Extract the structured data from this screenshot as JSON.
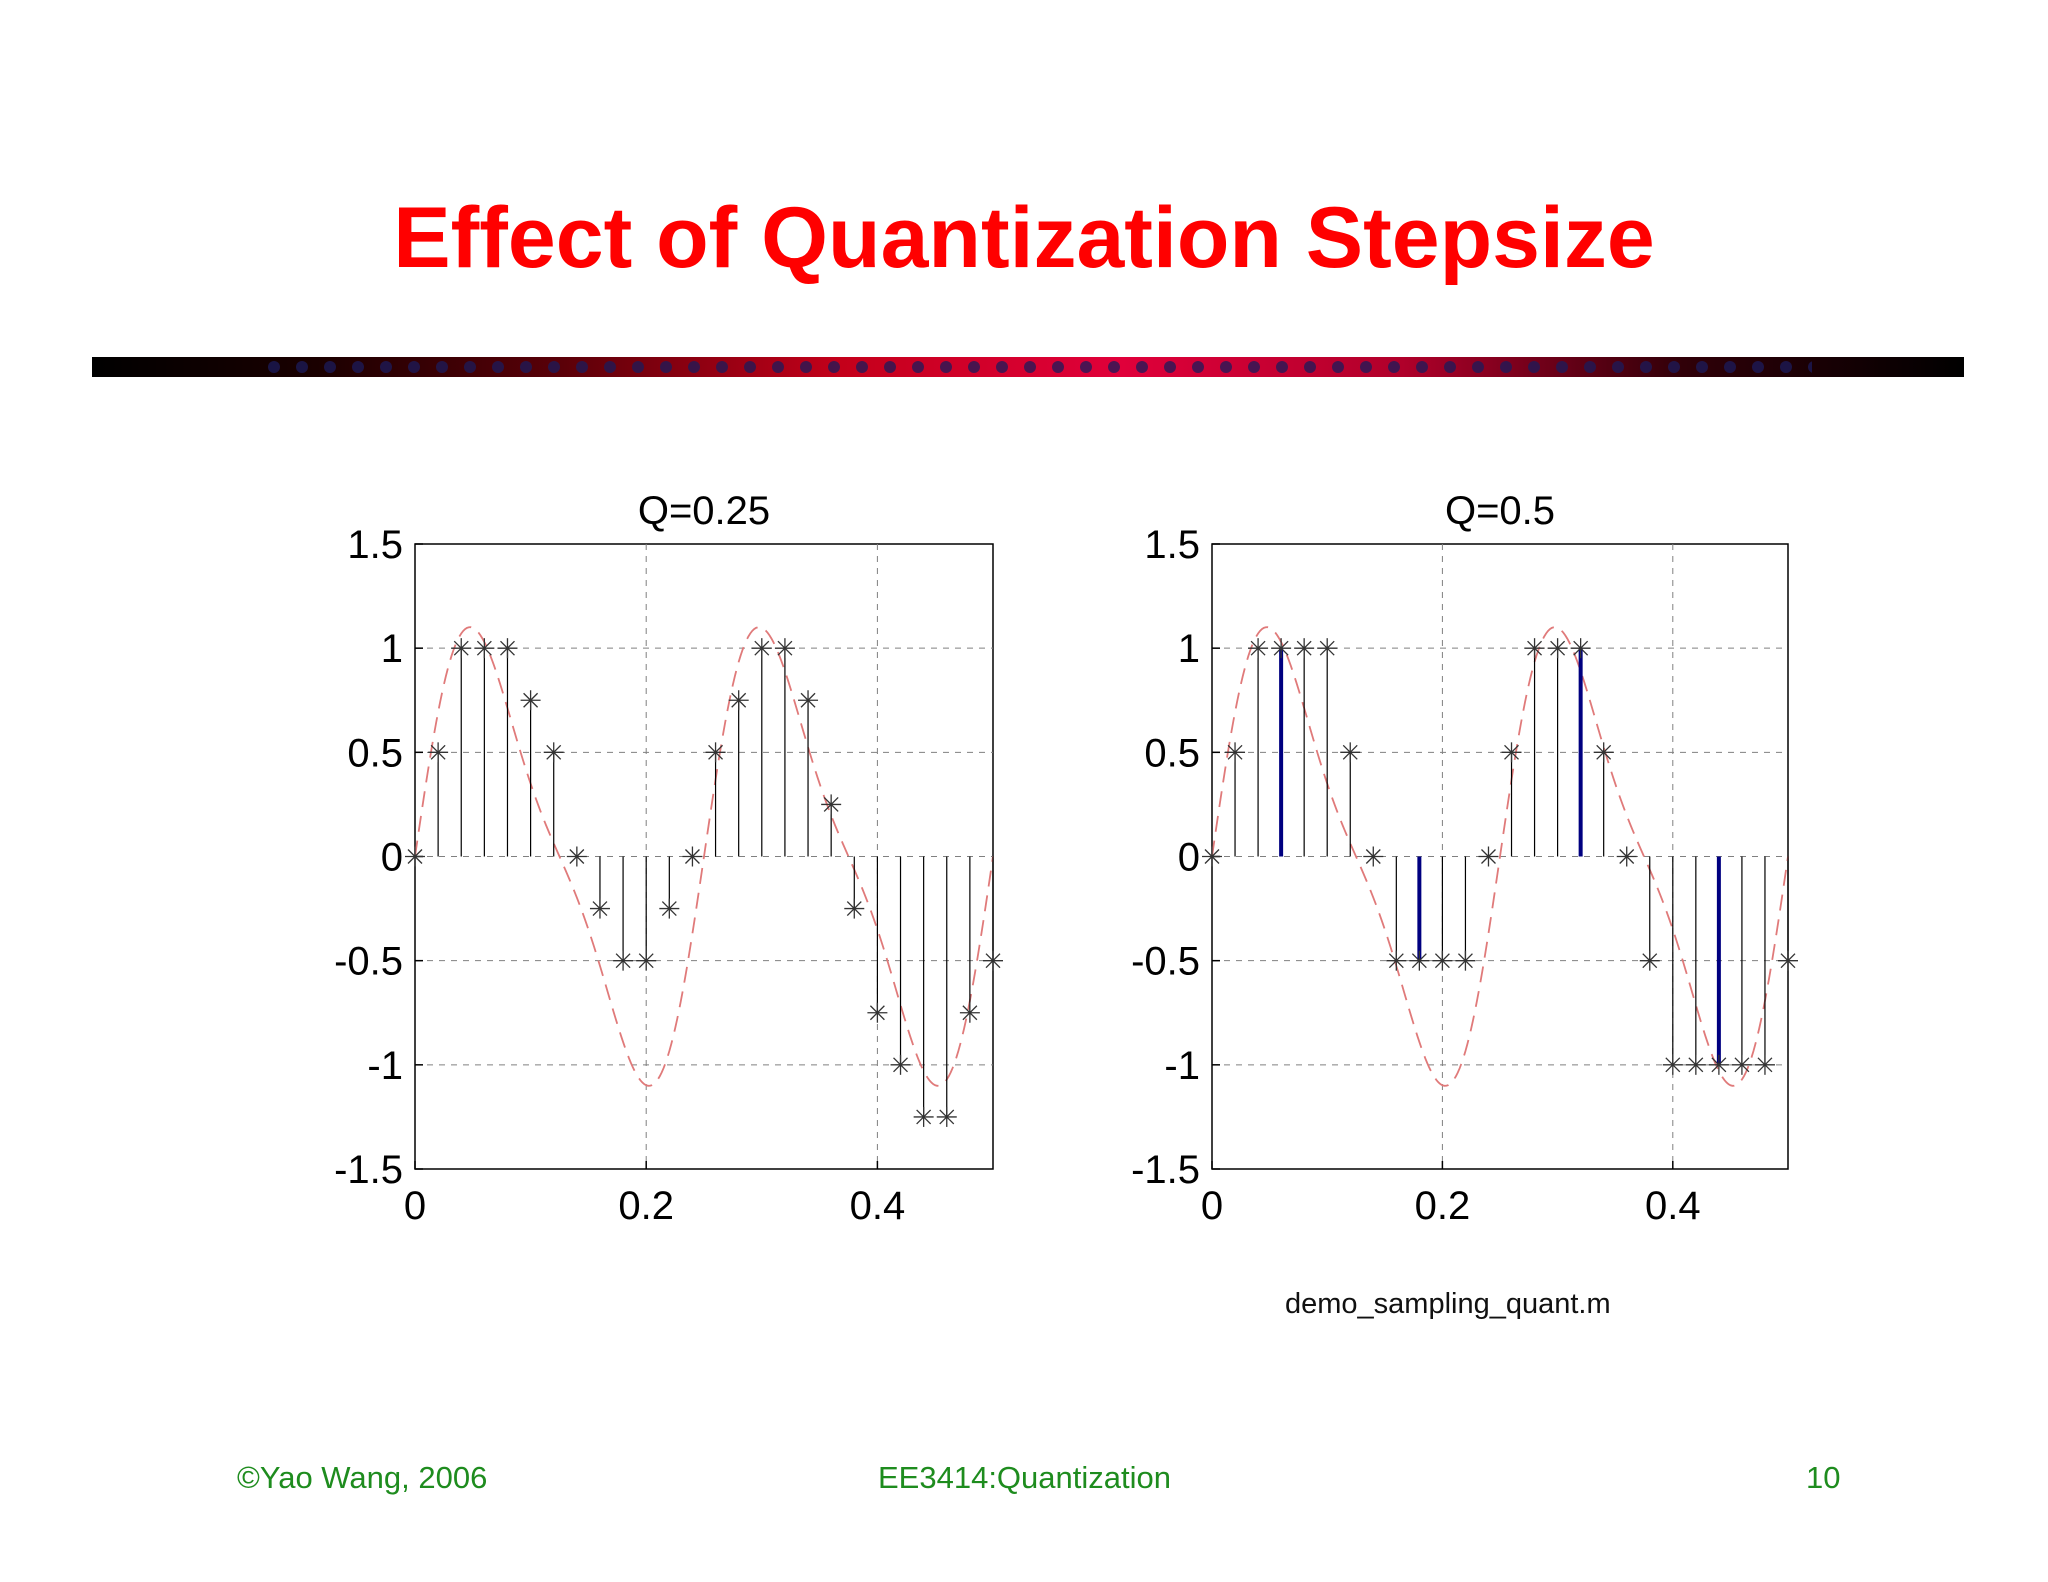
{
  "slide": {
    "title": "Effect of Quantization Stepsize",
    "caption": "demo_sampling_quant.m"
  },
  "footer": {
    "left": "©Yao Wang, 2006",
    "center": "EE3414:Quantization",
    "right": "10"
  },
  "colors": {
    "title": "#ff0000",
    "footer": "#1e8c1e",
    "stem": "#000000",
    "highlight_stem": "#000080",
    "continuous_curve": "#e07a7a",
    "grid": "#808080"
  },
  "chart_data": [
    {
      "type": "stem",
      "title": "Q=0.25",
      "xlabel": "",
      "ylabel": "",
      "xlim": [
        0,
        0.5
      ],
      "ylim": [
        -1.5,
        1.5
      ],
      "xticks": [
        0,
        0.2,
        0.4
      ],
      "xtick_labels": [
        "0",
        "0.2",
        "0.4"
      ],
      "yticks": [
        -1.5,
        -1,
        -0.5,
        0,
        0.5,
        1,
        1.5
      ],
      "ytick_labels": [
        "-1.5",
        "-1",
        "-0.5",
        "0",
        "0.5",
        "1",
        "1.5"
      ],
      "grid": true,
      "marker": "asterisk",
      "continuous_signal": "sin(2*pi*4*t) + 0.25*sin(2*pi*8*t)",
      "x": [
        0,
        0.02,
        0.04,
        0.06,
        0.08,
        0.1,
        0.12,
        0.14,
        0.16,
        0.18,
        0.2,
        0.22,
        0.24,
        0.26,
        0.28,
        0.3,
        0.32,
        0.34,
        0.36,
        0.38,
        0.4,
        0.42,
        0.44,
        0.46,
        0.48,
        0.5
      ],
      "values": [
        0,
        0.5,
        1,
        1,
        1,
        0.75,
        0.5,
        0,
        -0.25,
        -0.5,
        -0.5,
        -0.25,
        0,
        0.5,
        0.75,
        1,
        1,
        0.75,
        0.25,
        -0.25,
        -0.75,
        -1,
        -1.25,
        -1.25,
        -0.75,
        -0.5
      ],
      "highlighted_indices": []
    },
    {
      "type": "stem",
      "title": "Q=0.5",
      "xlabel": "",
      "ylabel": "",
      "xlim": [
        0,
        0.5
      ],
      "ylim": [
        -1.5,
        1.5
      ],
      "xticks": [
        0,
        0.2,
        0.4
      ],
      "xtick_labels": [
        "0",
        "0.2",
        "0.4"
      ],
      "yticks": [
        -1.5,
        -1,
        -0.5,
        0,
        0.5,
        1,
        1.5
      ],
      "ytick_labels": [
        "-1.5",
        "-1",
        "-0.5",
        "0",
        "0.5",
        "1",
        "1.5"
      ],
      "grid": true,
      "marker": "asterisk",
      "continuous_signal": "sin(2*pi*4*t) + 0.25*sin(2*pi*8*t)",
      "x": [
        0,
        0.02,
        0.04,
        0.06,
        0.08,
        0.1,
        0.12,
        0.14,
        0.16,
        0.18,
        0.2,
        0.22,
        0.24,
        0.26,
        0.28,
        0.3,
        0.32,
        0.34,
        0.36,
        0.38,
        0.4,
        0.42,
        0.44,
        0.46,
        0.48,
        0.5
      ],
      "values": [
        0,
        0.5,
        1,
        1,
        1,
        1,
        0.5,
        0,
        -0.5,
        -0.5,
        -0.5,
        -0.5,
        0,
        0.5,
        1,
        1,
        1,
        0.5,
        0,
        -0.5,
        -1,
        -1,
        -1,
        -1,
        -1,
        -0.5
      ],
      "highlighted_indices": [
        3,
        9,
        16,
        22
      ]
    }
  ]
}
